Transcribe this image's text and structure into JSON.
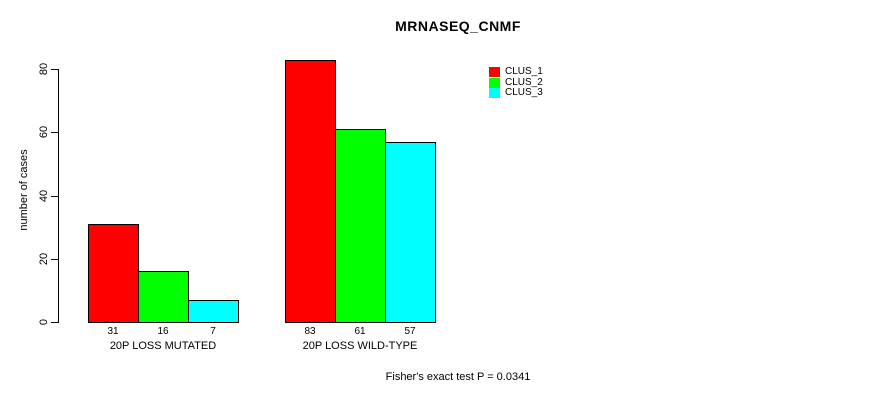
{
  "chart_data": {
    "type": "bar",
    "title": "MRNASEQ_CNMF",
    "xlabel": "",
    "ylabel": "number of cases",
    "ylim": [
      0,
      80
    ],
    "yticks": [
      0,
      20,
      40,
      60,
      80
    ],
    "grid": false,
    "legend_position": "top-right",
    "categories": [
      "20P LOSS MUTATED",
      "20P LOSS WILD-TYPE"
    ],
    "series": [
      {
        "name": "CLUS_1",
        "color": "#ff0000",
        "values": [
          31,
          83
        ]
      },
      {
        "name": "CLUS_2",
        "color": "#00ff00",
        "values": [
          16,
          61
        ]
      },
      {
        "name": "CLUS_3",
        "color": "#00ffff",
        "values": [
          7,
          57
        ]
      }
    ],
    "bar_value_labels": [
      [
        "31",
        "16",
        "7"
      ],
      [
        "83",
        "61",
        "57"
      ]
    ],
    "annotation": "Fisher's exact test P = 0.0341"
  },
  "colors": {
    "background": "#ffffff",
    "axis": "#000000",
    "text": "#000000",
    "bar_border": "#000000"
  }
}
